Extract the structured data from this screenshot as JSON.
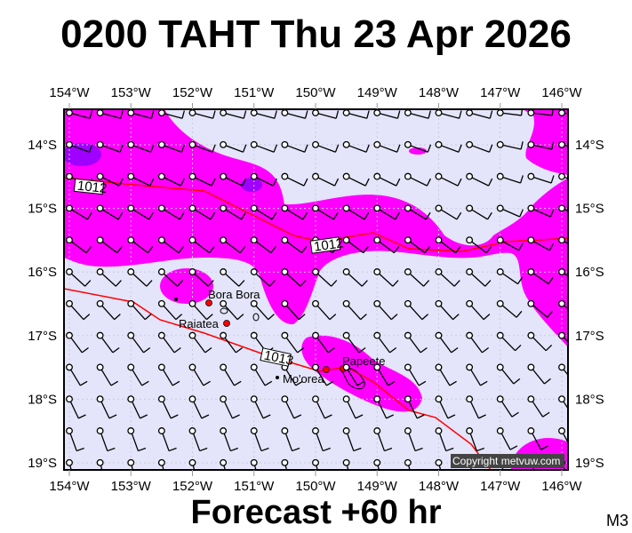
{
  "title": "0200 TAHT Thu 23 Apr 2026",
  "footer": "Forecast +60 hr",
  "model": "M3",
  "copyright": "Copyright metvuw.com",
  "lon_labels": [
    "154°W",
    "153°W",
    "152°W",
    "151°W",
    "150°W",
    "149°W",
    "148°W",
    "147°W",
    "146°W"
  ],
  "lat_labels": [
    "14°S",
    "15°S",
    "16°S",
    "17°S",
    "18°S",
    "19°S"
  ],
  "places": [
    "Bora Bora",
    "Raiatea",
    "Papeete",
    "Mo'orea"
  ],
  "isobars": [
    {
      "label": "1012"
    },
    {
      "label": "1013"
    }
  ],
  "colors": {
    "background": "#e4e4fa",
    "rain": "#ff00ff",
    "heavy_rain": "#a000ff",
    "isobar": "#ff0000"
  }
}
